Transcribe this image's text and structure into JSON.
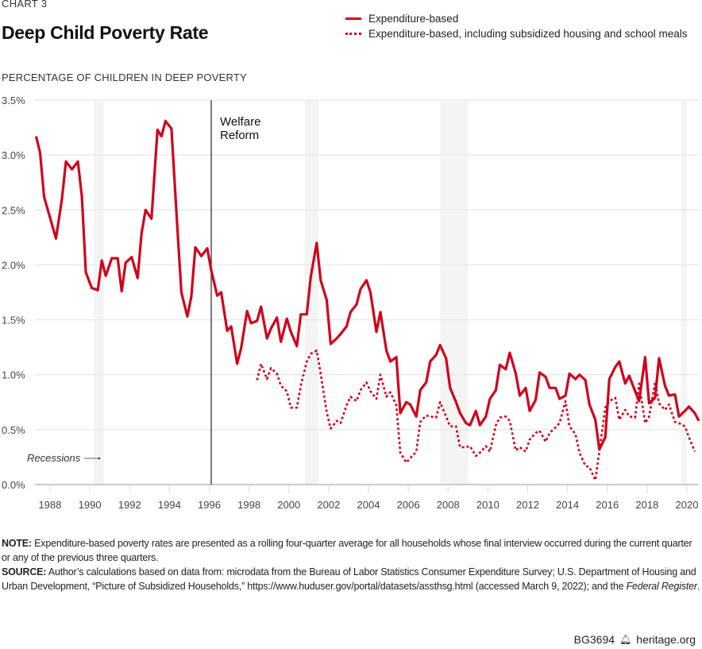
{
  "header": {
    "kicker": "CHART 3",
    "title": "Deep Child Poverty Rate"
  },
  "legend": {
    "items": [
      {
        "label": "Expenditure-based",
        "style": "solid"
      },
      {
        "label": "Expenditure-based, including subsidized housing and school meals",
        "style": "dotted"
      }
    ]
  },
  "colors": {
    "series": "#d0021b",
    "recession": "#f3f5f4",
    "grid": "#e6e6e6",
    "axis": "#bbbbbb",
    "annotation_line": "#222222"
  },
  "chart_data": {
    "type": "line",
    "title": "Deep Child Poverty Rate",
    "ylabel": "PERCENTAGE OF CHILDREN IN DEEP POVERTY",
    "xlabel": "",
    "xlim": [
      1987.2,
      2020.8
    ],
    "ylim": [
      0,
      3.5
    ],
    "y_ticks": [
      0,
      0.5,
      1.0,
      1.5,
      2.0,
      2.5,
      3.0,
      3.5
    ],
    "y_tick_labels": [
      "0.0%",
      "0.5%",
      "1.0%",
      "1.5%",
      "2.0%",
      "2.5%",
      "3.0%",
      "3.5%"
    ],
    "x_ticks": [
      1988,
      1990,
      1992,
      1994,
      1996,
      1998,
      2000,
      2002,
      2004,
      2006,
      2008,
      2010,
      2012,
      2014,
      2016,
      2018,
      2020
    ],
    "x_tick_labels": [
      "1988",
      "1990",
      "1992",
      "1994",
      "1996",
      "1998",
      "2000",
      "2002",
      "2004",
      "2006",
      "2008",
      "2010",
      "2012",
      "2014",
      "2016",
      "2018",
      "2020"
    ],
    "grid": "horizontal",
    "legend_position": "top-right",
    "annotations": [
      {
        "type": "vline",
        "x": 1996.1,
        "label_lines": [
          "Welfare",
          "Reform"
        ]
      },
      {
        "type": "text",
        "label": "Recessions",
        "arrow": true
      }
    ],
    "recessions": [
      {
        "start": 1990.2,
        "end": 1990.7
      },
      {
        "start": 2000.8,
        "end": 2001.5
      },
      {
        "start": 2007.6,
        "end": 2009.0
      },
      {
        "start": 2019.7,
        "end": 2020.0
      }
    ],
    "series": [
      {
        "name": "Expenditure-based",
        "style": "solid",
        "points": [
          [
            1987.3,
            3.17
          ],
          [
            1987.5,
            3.02
          ],
          [
            1987.7,
            2.62
          ],
          [
            1988.3,
            2.24
          ],
          [
            1988.6,
            2.6
          ],
          [
            1988.8,
            2.94
          ],
          [
            1989.1,
            2.87
          ],
          [
            1989.4,
            2.94
          ],
          [
            1989.6,
            2.62
          ],
          [
            1989.8,
            1.93
          ],
          [
            1990.1,
            1.79
          ],
          [
            1990.4,
            1.77
          ],
          [
            1990.6,
            2.04
          ],
          [
            1990.8,
            1.9
          ],
          [
            1991.1,
            2.06
          ],
          [
            1991.4,
            2.06
          ],
          [
            1991.6,
            1.76
          ],
          [
            1991.8,
            2.02
          ],
          [
            1992.1,
            2.07
          ],
          [
            1992.4,
            1.88
          ],
          [
            1992.6,
            2.29
          ],
          [
            1992.8,
            2.5
          ],
          [
            1993.1,
            2.42
          ],
          [
            1993.4,
            3.23
          ],
          [
            1993.6,
            3.17
          ],
          [
            1993.8,
            3.31
          ],
          [
            1994.1,
            3.24
          ],
          [
            1994.4,
            2.33
          ],
          [
            1994.6,
            1.75
          ],
          [
            1994.9,
            1.53
          ],
          [
            1995.1,
            1.71
          ],
          [
            1995.3,
            2.16
          ],
          [
            1995.6,
            2.08
          ],
          [
            1995.9,
            2.15
          ],
          [
            1996.1,
            1.95
          ],
          [
            1996.4,
            1.72
          ],
          [
            1996.6,
            1.75
          ],
          [
            1996.9,
            1.4
          ],
          [
            1997.1,
            1.44
          ],
          [
            1997.4,
            1.1
          ],
          [
            1997.6,
            1.24
          ],
          [
            1997.9,
            1.58
          ],
          [
            1998.1,
            1.47
          ],
          [
            1998.4,
            1.49
          ],
          [
            1998.6,
            1.62
          ],
          [
            1998.9,
            1.33
          ],
          [
            1999.1,
            1.42
          ],
          [
            1999.4,
            1.52
          ],
          [
            1999.6,
            1.3
          ],
          [
            1999.9,
            1.51
          ],
          [
            2000.1,
            1.39
          ],
          [
            2000.4,
            1.26
          ],
          [
            2000.6,
            1.55
          ],
          [
            2000.9,
            1.55
          ],
          [
            2001.1,
            1.89
          ],
          [
            2001.4,
            2.2
          ],
          [
            2001.6,
            1.86
          ],
          [
            2001.9,
            1.68
          ],
          [
            2002.1,
            1.28
          ],
          [
            2002.4,
            1.33
          ],
          [
            2002.6,
            1.37
          ],
          [
            2002.9,
            1.44
          ],
          [
            2003.1,
            1.57
          ],
          [
            2003.4,
            1.64
          ],
          [
            2003.6,
            1.78
          ],
          [
            2003.9,
            1.86
          ],
          [
            2004.1,
            1.75
          ],
          [
            2004.4,
            1.39
          ],
          [
            2004.6,
            1.57
          ],
          [
            2004.9,
            1.22
          ],
          [
            2005.1,
            1.12
          ],
          [
            2005.4,
            1.16
          ],
          [
            2005.6,
            0.65
          ],
          [
            2005.9,
            0.75
          ],
          [
            2006.1,
            0.73
          ],
          [
            2006.4,
            0.62
          ],
          [
            2006.6,
            0.86
          ],
          [
            2006.9,
            0.93
          ],
          [
            2007.1,
            1.12
          ],
          [
            2007.4,
            1.18
          ],
          [
            2007.6,
            1.27
          ],
          [
            2007.9,
            1.15
          ],
          [
            2008.1,
            0.88
          ],
          [
            2008.4,
            0.75
          ],
          [
            2008.6,
            0.65
          ],
          [
            2008.9,
            0.56
          ],
          [
            2009.1,
            0.54
          ],
          [
            2009.4,
            0.67
          ],
          [
            2009.6,
            0.54
          ],
          [
            2009.9,
            0.62
          ],
          [
            2010.1,
            0.78
          ],
          [
            2010.4,
            0.86
          ],
          [
            2010.6,
            1.09
          ],
          [
            2010.9,
            1.05
          ],
          [
            2011.1,
            1.2
          ],
          [
            2011.4,
            1.01
          ],
          [
            2011.6,
            0.81
          ],
          [
            2011.9,
            0.88
          ],
          [
            2012.1,
            0.67
          ],
          [
            2012.4,
            0.77
          ],
          [
            2012.6,
            1.02
          ],
          [
            2012.9,
            0.98
          ],
          [
            2013.1,
            0.88
          ],
          [
            2013.4,
            0.88
          ],
          [
            2013.6,
            0.78
          ],
          [
            2013.9,
            0.81
          ],
          [
            2014.1,
            1.01
          ],
          [
            2014.4,
            0.96
          ],
          [
            2014.6,
            1.0
          ],
          [
            2014.9,
            0.95
          ],
          [
            2015.1,
            0.73
          ],
          [
            2015.4,
            0.59
          ],
          [
            2015.6,
            0.32
          ],
          [
            2015.9,
            0.43
          ],
          [
            2016.1,
            0.96
          ],
          [
            2016.4,
            1.07
          ],
          [
            2016.6,
            1.12
          ],
          [
            2016.9,
            0.92
          ],
          [
            2017.1,
            0.99
          ],
          [
            2017.4,
            0.85
          ],
          [
            2017.6,
            0.76
          ],
          [
            2017.9,
            1.16
          ],
          [
            2018.1,
            0.74
          ],
          [
            2018.4,
            0.79
          ],
          [
            2018.6,
            1.15
          ],
          [
            2018.9,
            0.9
          ],
          [
            2019.1,
            0.81
          ],
          [
            2019.4,
            0.82
          ],
          [
            2019.6,
            0.62
          ],
          [
            2019.9,
            0.67
          ],
          [
            2020.1,
            0.71
          ],
          [
            2020.4,
            0.65
          ],
          [
            2020.6,
            0.58
          ]
        ]
      },
      {
        "name": "Expenditure-based, including subsidized housing and school meals",
        "style": "dotted",
        "points": [
          [
            1998.4,
            0.95
          ],
          [
            1998.6,
            1.1
          ],
          [
            1998.9,
            0.96
          ],
          [
            1999.1,
            1.06
          ],
          [
            1999.4,
            1.01
          ],
          [
            1999.6,
            0.9
          ],
          [
            1999.9,
            0.85
          ],
          [
            2000.1,
            0.7
          ],
          [
            2000.4,
            0.7
          ],
          [
            2000.6,
            0.9
          ],
          [
            2000.9,
            1.12
          ],
          [
            2001.1,
            1.19
          ],
          [
            2001.4,
            1.22
          ],
          [
            2001.6,
            1.01
          ],
          [
            2001.9,
            0.66
          ],
          [
            2002.1,
            0.51
          ],
          [
            2002.4,
            0.58
          ],
          [
            2002.6,
            0.56
          ],
          [
            2002.9,
            0.72
          ],
          [
            2003.1,
            0.8
          ],
          [
            2003.4,
            0.76
          ],
          [
            2003.6,
            0.86
          ],
          [
            2003.9,
            0.93
          ],
          [
            2004.1,
            0.85
          ],
          [
            2004.4,
            0.78
          ],
          [
            2004.6,
            1.0
          ],
          [
            2004.9,
            0.8
          ],
          [
            2005.1,
            0.84
          ],
          [
            2005.4,
            0.72
          ],
          [
            2005.6,
            0.29
          ],
          [
            2005.9,
            0.2
          ],
          [
            2006.1,
            0.24
          ],
          [
            2006.4,
            0.3
          ],
          [
            2006.6,
            0.57
          ],
          [
            2006.9,
            0.63
          ],
          [
            2007.1,
            0.62
          ],
          [
            2007.4,
            0.61
          ],
          [
            2007.6,
            0.75
          ],
          [
            2007.9,
            0.62
          ],
          [
            2008.1,
            0.53
          ],
          [
            2008.4,
            0.53
          ],
          [
            2008.6,
            0.34
          ],
          [
            2008.9,
            0.34
          ],
          [
            2009.1,
            0.35
          ],
          [
            2009.4,
            0.26
          ],
          [
            2009.6,
            0.29
          ],
          [
            2009.9,
            0.35
          ],
          [
            2010.1,
            0.3
          ],
          [
            2010.4,
            0.54
          ],
          [
            2010.6,
            0.61
          ],
          [
            2010.9,
            0.62
          ],
          [
            2011.1,
            0.58
          ],
          [
            2011.4,
            0.31
          ],
          [
            2011.6,
            0.34
          ],
          [
            2011.9,
            0.3
          ],
          [
            2012.1,
            0.41
          ],
          [
            2012.4,
            0.47
          ],
          [
            2012.6,
            0.49
          ],
          [
            2012.9,
            0.39
          ],
          [
            2013.1,
            0.47
          ],
          [
            2013.4,
            0.52
          ],
          [
            2013.6,
            0.56
          ],
          [
            2013.9,
            0.76
          ],
          [
            2014.1,
            0.53
          ],
          [
            2014.4,
            0.46
          ],
          [
            2014.6,
            0.29
          ],
          [
            2014.9,
            0.17
          ],
          [
            2015.1,
            0.16
          ],
          [
            2015.4,
            0.04
          ],
          [
            2015.6,
            0.3
          ],
          [
            2015.9,
            0.7
          ],
          [
            2016.1,
            0.76
          ],
          [
            2016.4,
            0.79
          ],
          [
            2016.6,
            0.59
          ],
          [
            2016.9,
            0.68
          ],
          [
            2017.1,
            0.62
          ],
          [
            2017.4,
            0.61
          ],
          [
            2017.6,
            0.92
          ],
          [
            2017.9,
            0.56
          ],
          [
            2018.1,
            0.62
          ],
          [
            2018.4,
            0.93
          ],
          [
            2018.6,
            0.74
          ],
          [
            2018.9,
            0.68
          ],
          [
            2019.1,
            0.73
          ],
          [
            2019.4,
            0.57
          ],
          [
            2019.6,
            0.56
          ],
          [
            2019.9,
            0.53
          ],
          [
            2020.1,
            0.43
          ],
          [
            2020.4,
            0.3
          ]
        ]
      }
    ]
  },
  "notes": {
    "note_label": "NOTE:",
    "note_text": " Expenditure-based poverty rates are presented as a rolling four-quarter average for all households whose final interview occurred during the current quarter or any of the previous three quarters.",
    "source_label": "SOURCE:",
    "source_text": " Author’s calculations based on data from: microdata from the Bureau of Labor Statistics Consumer Expenditure Survey; U.S. Department of Housing and Urban Development, “Picture of Subsidized Households,” https://www.huduser.gov/portal/datasets/assthsg.html (accessed March 9, 2022); and the ",
    "source_italic": "Federal Register",
    "source_end": "."
  },
  "footer": {
    "code": "BG3694",
    "logo_icon": "liberty-bell-icon",
    "site": "heritage.org"
  }
}
